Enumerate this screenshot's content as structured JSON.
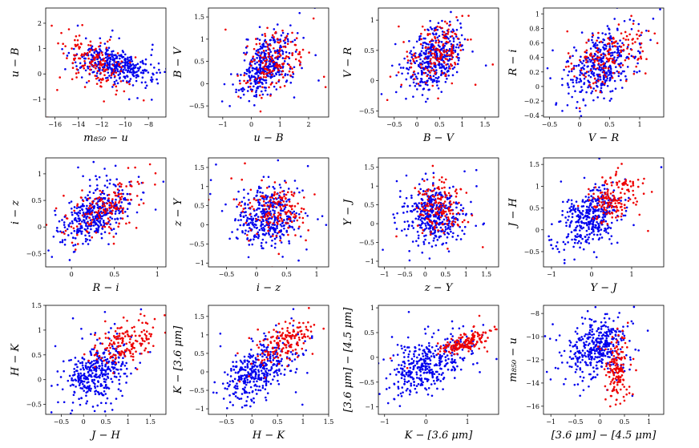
{
  "figure": {
    "series_colors": {
      "blue": "#0000ee",
      "red": "#ee0000"
    },
    "point_radius": 1.3
  },
  "chart_data": [
    {
      "type": "scatter",
      "xlabel": "m₈₅₀ − u",
      "ylabel": "u − B",
      "xlim": [
        -16.8,
        -6.5
      ],
      "ylim": [
        -1.7,
        2.6
      ],
      "xticks": [
        -16,
        -14,
        -12,
        -10,
        -8
      ],
      "yticks": [
        -1,
        0,
        1,
        2
      ],
      "blue": {
        "center": [
          -11,
          0.35
        ],
        "spread": [
          1.6,
          0.35
        ],
        "rho": -0.4,
        "n": 380
      },
      "red": {
        "center": [
          -12.8,
          0.55
        ],
        "spread": [
          1.5,
          0.5
        ],
        "rho": -0.45,
        "n": 160
      }
    },
    {
      "type": "scatter",
      "xlabel": "u − B",
      "ylabel": "B − V",
      "xlim": [
        -1.5,
        2.7
      ],
      "ylim": [
        -0.75,
        1.7
      ],
      "xticks": [
        -1,
        0,
        1,
        2
      ],
      "yticks": [
        -0.5,
        0.0,
        0.5,
        1.0,
        1.5
      ],
      "blue": {
        "center": [
          0.5,
          0.4
        ],
        "spread": [
          0.45,
          0.35
        ],
        "rho": 0.5,
        "n": 380
      },
      "red": {
        "center": [
          0.7,
          0.45
        ],
        "spread": [
          0.55,
          0.38
        ],
        "rho": 0.45,
        "n": 160
      }
    },
    {
      "type": "scatter",
      "xlabel": "B − V",
      "ylabel": "V − R",
      "xlim": [
        -0.85,
        1.8
      ],
      "ylim": [
        -0.6,
        1.2
      ],
      "xticks": [
        -0.5,
        0.0,
        0.5,
        1.0,
        1.5
      ],
      "yticks": [
        -0.5,
        0.0,
        0.5,
        1.0
      ],
      "blue": {
        "center": [
          0.35,
          0.35
        ],
        "spread": [
          0.32,
          0.28
        ],
        "rho": 0.45,
        "n": 380
      },
      "red": {
        "center": [
          0.45,
          0.45
        ],
        "spread": [
          0.3,
          0.25
        ],
        "rho": 0.45,
        "n": 160
      }
    },
    {
      "type": "scatter",
      "xlabel": "V − R",
      "ylabel": "R − i",
      "xlim": [
        -0.6,
        1.4
      ],
      "ylim": [
        -0.42,
        1.08
      ],
      "xticks": [
        -0.5,
        0.0,
        0.5,
        1.0
      ],
      "yticks": [
        -0.4,
        -0.2,
        0.0,
        0.2,
        0.4,
        0.6,
        0.8,
        1.0
      ],
      "blue": {
        "center": [
          0.35,
          0.3
        ],
        "spread": [
          0.28,
          0.22
        ],
        "rho": 0.45,
        "n": 380
      },
      "red": {
        "center": [
          0.45,
          0.4
        ],
        "spread": [
          0.3,
          0.22
        ],
        "rho": 0.45,
        "n": 160
      }
    },
    {
      "type": "scatter",
      "xlabel": "R − i",
      "ylabel": "i − z",
      "xlim": [
        -0.3,
        1.1
      ],
      "ylim": [
        -0.75,
        1.3
      ],
      "xticks": [
        0.0,
        0.5,
        1.0
      ],
      "yticks": [
        -0.5,
        0.0,
        0.5,
        1.0
      ],
      "blue": {
        "center": [
          0.3,
          0.25
        ],
        "spread": [
          0.22,
          0.28
        ],
        "rho": 0.5,
        "n": 380
      },
      "red": {
        "center": [
          0.4,
          0.35
        ],
        "spread": [
          0.25,
          0.3
        ],
        "rho": 0.5,
        "n": 160
      }
    },
    {
      "type": "scatter",
      "xlabel": "i − z",
      "ylabel": "z − Y",
      "xlim": [
        -0.8,
        1.2
      ],
      "ylim": [
        -1.1,
        1.75
      ],
      "xticks": [
        -0.5,
        0.0,
        0.5,
        1.0
      ],
      "yticks": [
        -1.0,
        -0.5,
        0.0,
        0.5,
        1.0,
        1.5
      ],
      "blue": {
        "center": [
          0.2,
          0.2
        ],
        "spread": [
          0.28,
          0.38
        ],
        "rho": 0.0,
        "n": 380
      },
      "red": {
        "center": [
          0.35,
          0.4
        ],
        "spread": [
          0.25,
          0.32
        ],
        "rho": 0.0,
        "n": 160
      }
    },
    {
      "type": "scatter",
      "xlabel": "z − Y",
      "ylabel": "Y − J",
      "xlim": [
        -1.15,
        1.8
      ],
      "ylim": [
        -1.15,
        1.75
      ],
      "xticks": [
        -1.0,
        -0.5,
        0.0,
        0.5,
        1.0,
        1.5
      ],
      "yticks": [
        -1.0,
        -0.5,
        0.0,
        0.5,
        1.0,
        1.5
      ],
      "blue": {
        "center": [
          0.2,
          0.25
        ],
        "spread": [
          0.35,
          0.38
        ],
        "rho": -0.1,
        "n": 380
      },
      "red": {
        "center": [
          0.35,
          0.45
        ],
        "spread": [
          0.3,
          0.35
        ],
        "rho": -0.1,
        "n": 160
      }
    },
    {
      "type": "scatter",
      "xlabel": "Y − J",
      "ylabel": "J − H",
      "xlim": [
        -1.2,
        1.8
      ],
      "ylim": [
        -0.85,
        1.65
      ],
      "xticks": [
        -1,
        0,
        1
      ],
      "yticks": [
        -0.5,
        0.0,
        0.5,
        1.0,
        1.5
      ],
      "blue": {
        "center": [
          0.0,
          0.3
        ],
        "spread": [
          0.35,
          0.33
        ],
        "rho": 0.3,
        "n": 380
      },
      "red": {
        "center": [
          0.55,
          0.75
        ],
        "spread": [
          0.35,
          0.3
        ],
        "rho": 0.3,
        "n": 160
      }
    },
    {
      "type": "scatter",
      "xlabel": "J − H",
      "ylabel": "H − K",
      "xlim": [
        -0.85,
        1.85
      ],
      "ylim": [
        -0.7,
        1.5
      ],
      "xticks": [
        -0.5,
        0.0,
        0.5,
        1.0,
        1.5
      ],
      "yticks": [
        -0.5,
        0.0,
        0.5,
        1.0,
        1.5
      ],
      "blue": {
        "center": [
          0.3,
          0.15
        ],
        "spread": [
          0.35,
          0.3
        ],
        "rho": 0.35,
        "n": 380
      },
      "red": {
        "center": [
          0.95,
          0.75
        ],
        "spread": [
          0.32,
          0.25
        ],
        "rho": 0.35,
        "n": 160
      }
    },
    {
      "type": "scatter",
      "xlabel": "H − K",
      "ylabel": "K − [3.6 μm]",
      "xlim": [
        -0.85,
        1.5
      ],
      "ylim": [
        -1.15,
        1.8
      ],
      "xticks": [
        -0.5,
        0.0,
        0.5,
        1.0,
        1.5
      ],
      "yticks": [
        -1.0,
        -0.5,
        0.0,
        0.5,
        1.0,
        1.5
      ],
      "blue": {
        "center": [
          0.15,
          0.05
        ],
        "spread": [
          0.32,
          0.4
        ],
        "rho": 0.45,
        "n": 380
      },
      "red": {
        "center": [
          0.65,
          0.8
        ],
        "spread": [
          0.25,
          0.28
        ],
        "rho": 0.6,
        "n": 160
      }
    },
    {
      "type": "scatter",
      "xlabel": "K − [3.6 μm]",
      "ylabel": "[3.6 μm] − [4.5 μm]",
      "xlim": [
        -1.15,
        1.75
      ],
      "ylim": [
        -1.15,
        1.05
      ],
      "xticks": [
        -1,
        0,
        1
      ],
      "yticks": [
        -1.0,
        -0.5,
        0.0,
        0.5,
        1.0
      ],
      "blue": {
        "center": [
          0.0,
          -0.15
        ],
        "spread": [
          0.45,
          0.3
        ],
        "rho": 0.45,
        "n": 380
      },
      "red": {
        "center": [
          0.95,
          0.3
        ],
        "spread": [
          0.3,
          0.12
        ],
        "rho": 0.6,
        "n": 160
      }
    },
    {
      "type": "scatter",
      "xlabel": "[3.6 μm] − [4.5 μm]",
      "ylabel": "m₈₅₀ − u",
      "xlim": [
        -1.15,
        1.3
      ],
      "ylim": [
        -16.7,
        -7.3
      ],
      "xticks": [
        -1.0,
        -0.5,
        0.0,
        0.5,
        1.0
      ],
      "yticks": [
        -16,
        -14,
        -12,
        -10,
        -8
      ],
      "blue": {
        "center": [
          -0.05,
          -10.8
        ],
        "spread": [
          0.3,
          1.3
        ],
        "rho": 0.2,
        "n": 380
      },
      "red": {
        "center": [
          0.35,
          -12.8
        ],
        "spread": [
          0.12,
          1.4
        ],
        "rho": 0.1,
        "n": 160
      }
    }
  ]
}
